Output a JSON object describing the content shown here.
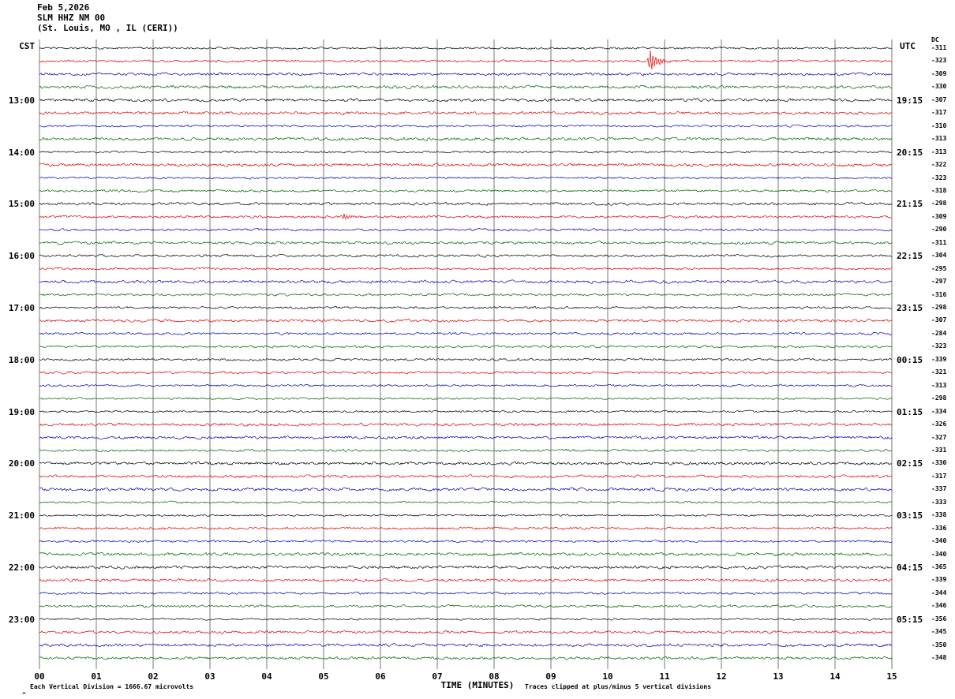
{
  "header": {
    "date": "Feb 5,2026",
    "station": "SLM HHZ NM 00",
    "location": "(St. Louis, MO , IL (CERI))"
  },
  "axes": {
    "left_header": "CST",
    "right_header": "UTC",
    "dc_header": "DC",
    "xlabel": "TIME (MINUTES)",
    "x_ticks": [
      "00",
      "01",
      "02",
      "03",
      "04",
      "05",
      "06",
      "07",
      "08",
      "09",
      "10",
      "11",
      "12",
      "13",
      "14",
      "15"
    ]
  },
  "footer": {
    "left_note": "Each Vertical Division = 1666.67 microvolts",
    "right_note": "Traces clipped at plus/minus 5 vertical divisions",
    "corner_mark": "^"
  },
  "chart_data": {
    "type": "line",
    "title": "SLM HHZ NM 00 helicorder seismogram, Feb 5,2026, St. Louis MO (CERI)",
    "xlabel": "TIME (MINUTES)",
    "x_range_minutes": [
      0,
      15
    ],
    "traces_total": 48,
    "trace_color_cycle": [
      "black",
      "red",
      "blue",
      "green"
    ],
    "colors": {
      "black": "#000000",
      "red": "#dd0000",
      "blue": "#0000bb",
      "green": "#006600",
      "grid": "#777777"
    },
    "cst_hour_labels": [
      {
        "trace": 4,
        "label": "13:00"
      },
      {
        "trace": 8,
        "label": "14:00"
      },
      {
        "trace": 12,
        "label": "15:00"
      },
      {
        "trace": 16,
        "label": "16:00"
      },
      {
        "trace": 20,
        "label": "17:00"
      },
      {
        "trace": 24,
        "label": "18:00"
      },
      {
        "trace": 28,
        "label": "19:00"
      },
      {
        "trace": 32,
        "label": "20:00"
      },
      {
        "trace": 36,
        "label": "21:00"
      },
      {
        "trace": 40,
        "label": "22:00"
      },
      {
        "trace": 44,
        "label": "23:00"
      }
    ],
    "utc_labels": [
      {
        "trace": 4,
        "label": "19:15"
      },
      {
        "trace": 8,
        "label": "20:15"
      },
      {
        "trace": 12,
        "label": "21:15"
      },
      {
        "trace": 16,
        "label": "22:15"
      },
      {
        "trace": 20,
        "label": "23:15"
      },
      {
        "trace": 24,
        "label": "00:15"
      },
      {
        "trace": 28,
        "label": "01:15"
      },
      {
        "trace": 32,
        "label": "02:15"
      },
      {
        "trace": 36,
        "label": "03:15"
      },
      {
        "trace": 40,
        "label": "04:15"
      },
      {
        "trace": 44,
        "label": "05:15"
      }
    ],
    "dc_values": [
      "-311",
      "-323",
      "-309",
      "-330",
      "-307",
      "-317",
      "-310",
      "-313",
      "-313",
      "-322",
      "-323",
      "-318",
      "-298",
      "-309",
      "-290",
      "-311",
      "-304",
      "-295",
      "-297",
      "-316",
      "-298",
      "-307",
      "-284",
      "-323",
      "-339",
      "-321",
      "-313",
      "-298",
      "-334",
      "-326",
      "-327",
      "-331",
      "-330",
      "-317",
      "-337",
      "-333",
      "-338",
      "-336",
      "-340",
      "-340",
      "-365",
      "-339",
      "-344",
      "-346",
      "-356",
      "-345",
      "-350",
      "-348"
    ],
    "events": [
      {
        "trace": 1,
        "minute": 10.74,
        "amplitude_divisions": 0.9,
        "description": "sharp transient spike on red trace"
      },
      {
        "trace": 13,
        "minute": 5.35,
        "amplitude_divisions": 0.22,
        "description": "small burst on red trace"
      }
    ]
  }
}
